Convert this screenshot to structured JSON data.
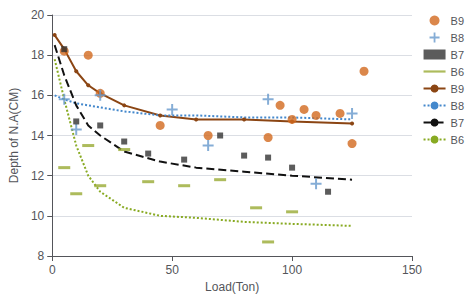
{
  "chart_data": {
    "type": "scatter",
    "title": "",
    "xlabel": "Load(Ton)",
    "ylabel": "Depth of N.A(CM)",
    "xlim": [
      0,
      150
    ],
    "ylim": [
      8,
      20
    ],
    "xticks": [
      0,
      50,
      100,
      150
    ],
    "yticks": [
      8,
      10,
      12,
      14,
      16,
      18,
      20
    ],
    "grid": "y",
    "legend": "right",
    "series": [
      {
        "name": "B9",
        "type": "scatter",
        "marker": "circle",
        "color": "#D2691E",
        "x": [
          5,
          15,
          20,
          45,
          65,
          90,
          95,
          100,
          105,
          110,
          120,
          125,
          130
        ],
        "values": [
          18.2,
          18.0,
          16.1,
          14.5,
          14.0,
          13.9,
          15.5,
          14.8,
          15.3,
          15.0,
          15.1,
          13.6,
          17.2
        ]
      },
      {
        "name": "B8",
        "type": "scatter",
        "marker": "plus",
        "color": "#6699CC",
        "x": [
          5,
          10,
          20,
          50,
          65,
          90,
          110,
          125
        ],
        "values": [
          15.8,
          14.3,
          16.0,
          15.3,
          13.5,
          15.8,
          11.6,
          15.1
        ]
      },
      {
        "name": "B7",
        "type": "scatter",
        "marker": "square",
        "color": "#333333",
        "x": [
          5,
          10,
          20,
          30,
          40,
          55,
          70,
          80,
          90,
          100,
          115
        ],
        "values": [
          18.3,
          14.7,
          14.5,
          13.7,
          13.1,
          12.8,
          14.0,
          13.0,
          12.9,
          12.4,
          11.2
        ]
      },
      {
        "name": "B6",
        "type": "scatter",
        "marker": "hline",
        "color": "#99AA33",
        "x": [
          5,
          10,
          15,
          20,
          30,
          40,
          55,
          70,
          85,
          90,
          100
        ],
        "values": [
          12.4,
          11.1,
          13.5,
          11.5,
          13.3,
          11.7,
          11.5,
          11.8,
          10.4,
          8.7,
          10.2
        ]
      },
      {
        "name": "B9",
        "type": "line",
        "line_style": "solid",
        "marker": "point",
        "color": "#8B4513",
        "x": [
          1,
          5,
          10,
          15,
          20,
          30,
          45,
          60,
          80,
          100,
          125
        ],
        "values": [
          19.0,
          18.3,
          17.2,
          16.5,
          16.1,
          15.5,
          15.0,
          14.8,
          14.8,
          14.7,
          14.6
        ]
      },
      {
        "name": "B8",
        "type": "line",
        "line_style": "dotted",
        "color": "#4488CC",
        "x": [
          1,
          5,
          10,
          15,
          20,
          30,
          45,
          60,
          80,
          100,
          125
        ],
        "values": [
          16.0,
          15.8,
          15.6,
          15.5,
          15.4,
          15.2,
          15.0,
          15.0,
          14.9,
          14.9,
          14.8
        ]
      },
      {
        "name": "B7",
        "type": "line",
        "line_style": "dashed",
        "color": "#111111",
        "x": [
          1,
          5,
          10,
          15,
          20,
          30,
          45,
          60,
          80,
          100,
          125
        ],
        "values": [
          18.5,
          17.0,
          15.5,
          14.5,
          14.0,
          13.2,
          12.7,
          12.4,
          12.2,
          12.0,
          11.8
        ]
      },
      {
        "name": "B6",
        "type": "line",
        "line_style": "dotted",
        "color": "#88AA22",
        "x": [
          1,
          5,
          10,
          15,
          20,
          30,
          45,
          60,
          80,
          100,
          125
        ],
        "values": [
          17.8,
          15.8,
          13.5,
          12.0,
          11.2,
          10.4,
          10.0,
          9.9,
          9.7,
          9.6,
          9.5
        ]
      }
    ]
  }
}
